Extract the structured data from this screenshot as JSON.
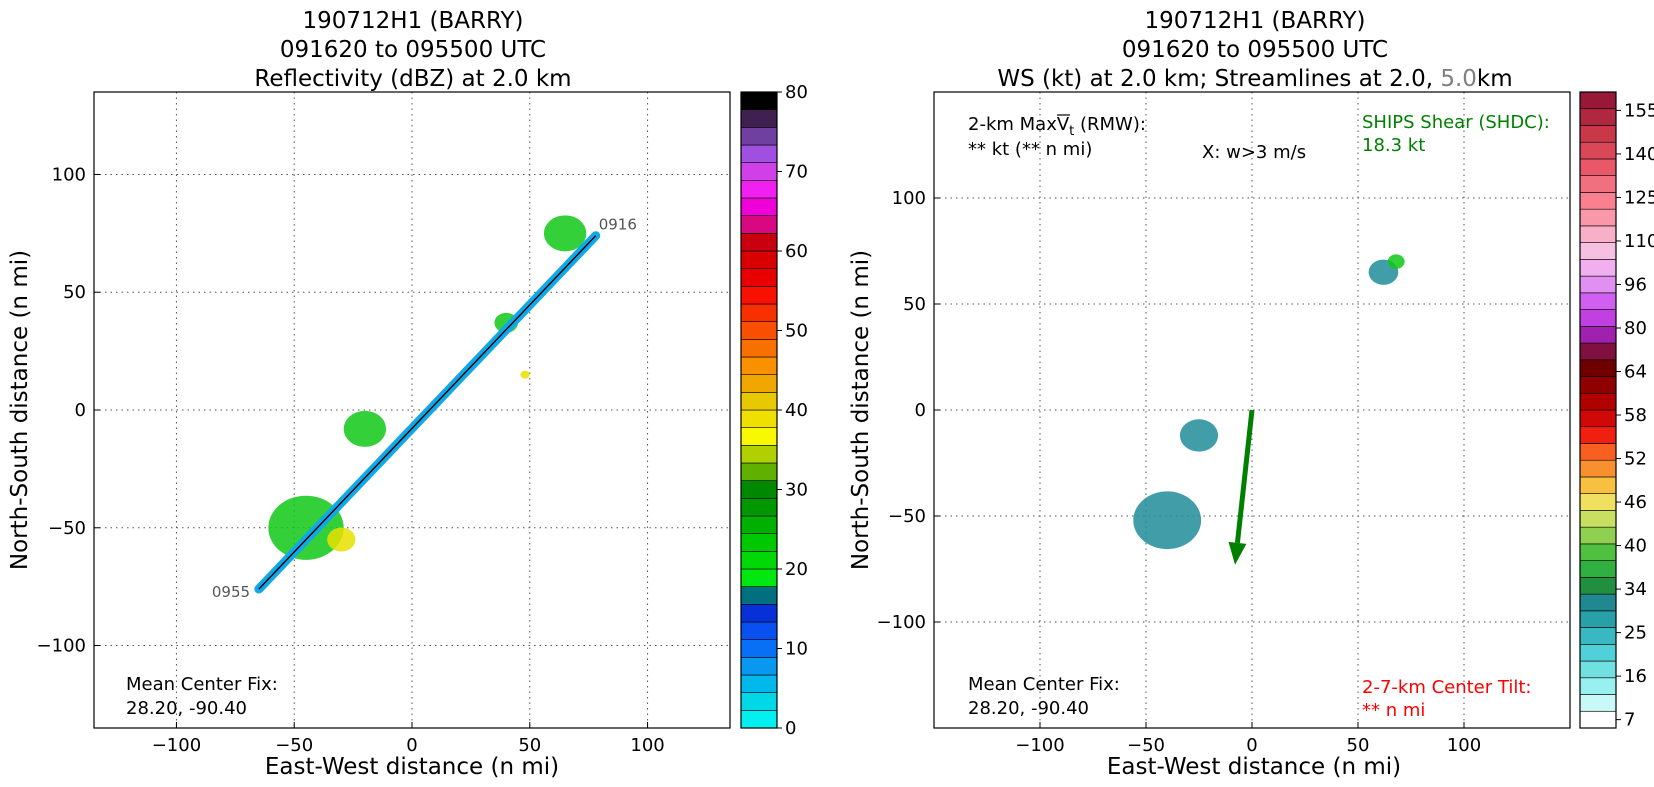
{
  "chart_data": [
    {
      "type": "scatter",
      "title_lines": [
        "190712H1 (BARRY)",
        "091620 to 095500 UTC",
        "Reflectivity (dBZ) at 2.0 km"
      ],
      "xlabel": "East-West distance (n mi)",
      "ylabel": "North-South distance (n mi)",
      "xlim": [
        -135,
        135
      ],
      "ylim": [
        -135,
        135
      ],
      "xticks": [
        -100,
        -50,
        0,
        50,
        100
      ],
      "yticks": [
        -100,
        -50,
        0,
        50,
        100
      ],
      "grid": true,
      "track": {
        "start": [
          78,
          74
        ],
        "end": [
          -65,
          -76
        ],
        "start_label": "0916",
        "end_label": "0955"
      },
      "annotations": {
        "center_fix_line1": "Mean Center Fix:",
        "center_fix_line2": "28.20, -90.40"
      },
      "echo_regions": [
        {
          "level": "green",
          "cx": 65,
          "cy": 75,
          "r": 9
        },
        {
          "level": "green",
          "cx": 40,
          "cy": 37,
          "r": 5
        },
        {
          "level": "green",
          "cx": -20,
          "cy": -8,
          "r": 9
        },
        {
          "level": "green",
          "cx": -45,
          "cy": -50,
          "r": 16
        },
        {
          "level": "yellow",
          "cx": -30,
          "cy": -55,
          "r": 6
        },
        {
          "level": "yellow",
          "cx": 48,
          "cy": 15,
          "r": 2
        }
      ],
      "colorbar": {
        "label_values": [
          0,
          10,
          20,
          30,
          40,
          50,
          60,
          70,
          80
        ],
        "colors": [
          "#00f0f0",
          "#00d8e8",
          "#00b8ec",
          "#0898f0",
          "#0870f5",
          "#0850f0",
          "#0830d8",
          "#007080",
          "#00e810",
          "#00d808",
          "#00c800",
          "#00b000",
          "#009800",
          "#008800",
          "#60b000",
          "#b0d000",
          "#f8f800",
          "#f0e000",
          "#e8c800",
          "#f0a800",
          "#f89000",
          "#f87000",
          "#f85000",
          "#f83000",
          "#f81000",
          "#e80000",
          "#d80000",
          "#c80010",
          "#d80880",
          "#f000d8",
          "#f020f0",
          "#d040e8",
          "#a050e0",
          "#7040a0",
          "#402050",
          "#000000"
        ]
      }
    },
    {
      "type": "scatter",
      "title_lines": [
        "190712H1 (BARRY)",
        "091620 to 095500 UTC"
      ],
      "title_line3_prefix": "WS (kt) at 2.0 km; Streamlines at 2.0, ",
      "title_line3_gray": "5.0",
      "title_line3_suffix": "km",
      "xlabel": "East-West distance (n mi)",
      "ylabel": "North-South distance (n mi)",
      "xlim": [
        -150,
        150
      ],
      "ylim": [
        -150,
        150
      ],
      "xticks": [
        -100,
        -50,
        0,
        50,
        100
      ],
      "yticks": [
        -100,
        -50,
        0,
        50,
        100
      ],
      "grid": true,
      "annotations": {
        "maxvt_line1": "2-km MaxV",
        "maxvt_sub": "t",
        "maxvt_tail": " (RMW):",
        "maxvt_line2": "** kt (** n mi)",
        "w_note": "X: w>3 m/s",
        "shear_line1": "SHIPS Shear (SHDC):",
        "shear_line2": "18.3 kt",
        "center_fix_line1": "Mean Center Fix:",
        "center_fix_line2": "28.20, -90.40",
        "tilt_line1": "2-7-km Center Tilt:",
        "tilt_line2": "** n mi"
      },
      "shear_vector": {
        "from": [
          0,
          0
        ],
        "to": [
          -8,
          -73
        ],
        "color": "#008000"
      },
      "wind_regions": [
        {
          "level": "teal",
          "cx": -40,
          "cy": -52,
          "r": 16
        },
        {
          "level": "teal",
          "cx": -25,
          "cy": -12,
          "r": 9
        },
        {
          "level": "teal",
          "cx": 62,
          "cy": 65,
          "r": 7
        },
        {
          "level": "green",
          "cx": 68,
          "cy": 70,
          "r": 4
        }
      ],
      "colorbar": {
        "label_values": [
          7,
          16,
          25,
          34,
          40,
          46,
          52,
          58,
          64,
          80,
          96,
          110,
          125,
          140,
          155
        ],
        "colors": [
          "#ffffff",
          "#c8f8f8",
          "#98f0f0",
          "#70e0e0",
          "#50d0d8",
          "#38b8c0",
          "#28a0a8",
          "#208890",
          "#209040",
          "#30b040",
          "#50c040",
          "#90d050",
          "#c8e060",
          "#f0e060",
          "#f8c040",
          "#f89030",
          "#f86020",
          "#f02010",
          "#d00808",
          "#b00000",
          "#900000",
          "#700000",
          "#801040",
          "#a020b0",
          "#c040e0",
          "#d060f0",
          "#e090f0",
          "#f0b0f0",
          "#f8c0e0",
          "#f8b0c8",
          "#f898a8",
          "#f88090",
          "#f07080",
          "#e85868",
          "#d84858",
          "#c83848",
          "#b02840",
          "#981838"
        ]
      }
    }
  ]
}
